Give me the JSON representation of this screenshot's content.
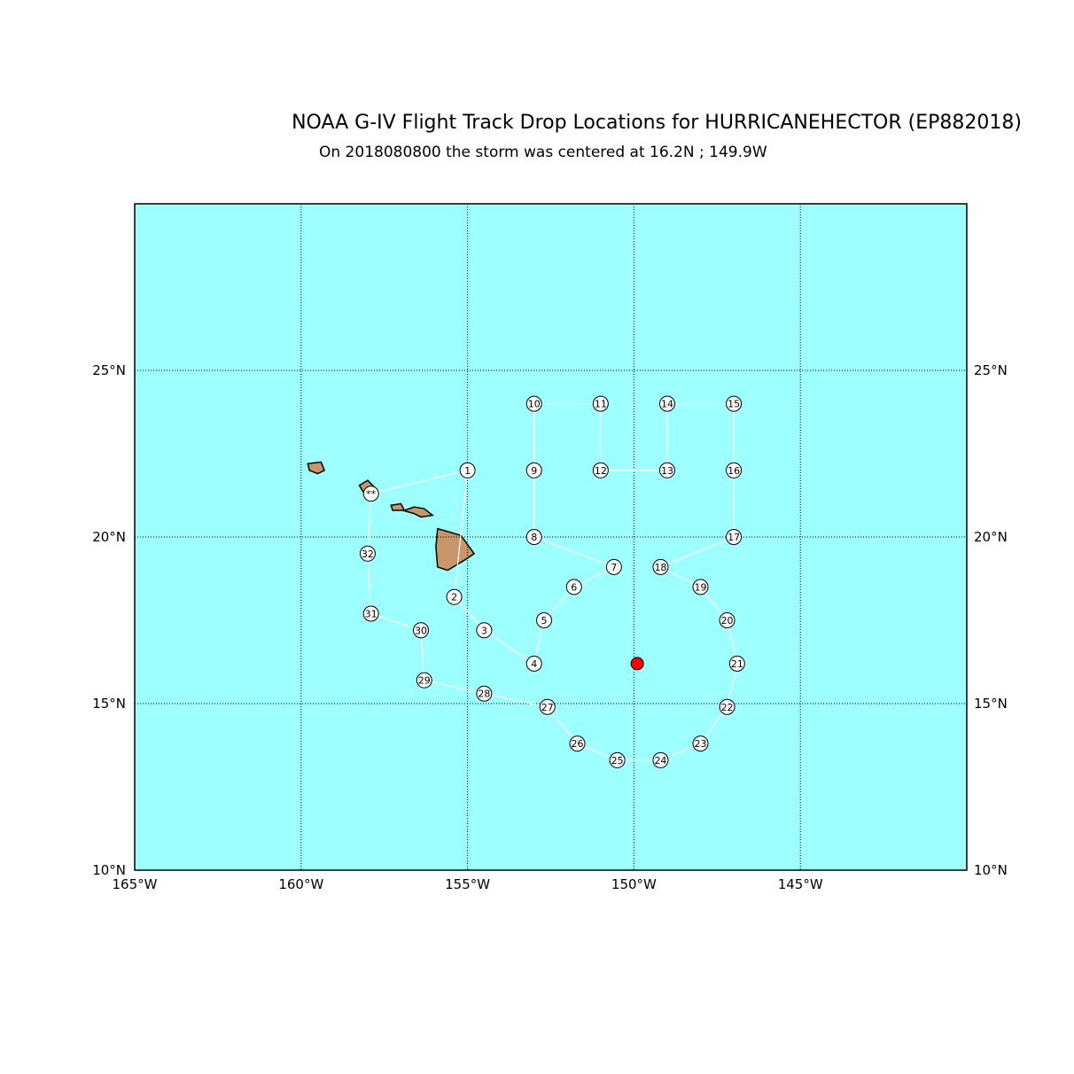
{
  "title": "NOAA G-IV Flight Track Drop Locations for HURRICANEHECTOR (EP882018)",
  "subtitle": "On 2018080800 the storm was centered at 16.2N ; 149.9W",
  "map": {
    "lon_range": [
      -165,
      -140
    ],
    "lat_range": [
      10,
      30
    ],
    "lon_ticks": [
      -165,
      -160,
      -155,
      -150,
      -145
    ],
    "lon_tick_labels": [
      "165°W",
      "160°W",
      "155°W",
      "150°W",
      "145°W"
    ],
    "lat_ticks": [
      10,
      15,
      20,
      25
    ],
    "lat_tick_labels": [
      "10°N",
      "15°N",
      "20°N",
      "25°N"
    ],
    "ocean_color": "#9effff",
    "land_color": "#c8966a",
    "track_color": "#ffffff",
    "storm_color": "#ff0000"
  },
  "storm_center": {
    "lat": 16.2,
    "lon": -149.9
  },
  "launch_marker": {
    "label": "**",
    "lat": 21.3,
    "lon": -157.9
  },
  "drops": [
    {
      "id": "1",
      "lat": 22.0,
      "lon": -155.0
    },
    {
      "id": "2",
      "lat": 18.2,
      "lon": -155.4
    },
    {
      "id": "3",
      "lat": 17.2,
      "lon": -154.5
    },
    {
      "id": "4",
      "lat": 16.2,
      "lon": -153.0
    },
    {
      "id": "5",
      "lat": 17.5,
      "lon": -152.7
    },
    {
      "id": "6",
      "lat": 18.5,
      "lon": -151.8
    },
    {
      "id": "7",
      "lat": 19.1,
      "lon": -150.6
    },
    {
      "id": "8",
      "lat": 20.0,
      "lon": -153.0
    },
    {
      "id": "9",
      "lat": 22.0,
      "lon": -153.0
    },
    {
      "id": "10",
      "lat": 24.0,
      "lon": -153.0
    },
    {
      "id": "11",
      "lat": 24.0,
      "lon": -151.0
    },
    {
      "id": "12",
      "lat": 22.0,
      "lon": -151.0
    },
    {
      "id": "13",
      "lat": 22.0,
      "lon": -149.0
    },
    {
      "id": "14",
      "lat": 24.0,
      "lon": -149.0
    },
    {
      "id": "15",
      "lat": 24.0,
      "lon": -147.0
    },
    {
      "id": "16",
      "lat": 22.0,
      "lon": -147.0
    },
    {
      "id": "17",
      "lat": 20.0,
      "lon": -147.0
    },
    {
      "id": "18",
      "lat": 19.1,
      "lon": -149.2
    },
    {
      "id": "19",
      "lat": 18.5,
      "lon": -148.0
    },
    {
      "id": "20",
      "lat": 17.5,
      "lon": -147.2
    },
    {
      "id": "21",
      "lat": 16.2,
      "lon": -146.9
    },
    {
      "id": "22",
      "lat": 14.9,
      "lon": -147.2
    },
    {
      "id": "23",
      "lat": 13.8,
      "lon": -148.0
    },
    {
      "id": "24",
      "lat": 13.3,
      "lon": -149.2
    },
    {
      "id": "25",
      "lat": 13.3,
      "lon": -150.5
    },
    {
      "id": "26",
      "lat": 13.8,
      "lon": -151.7
    },
    {
      "id": "27",
      "lat": 14.9,
      "lon": -152.6
    },
    {
      "id": "28",
      "lat": 15.3,
      "lon": -154.5
    },
    {
      "id": "29",
      "lat": 15.7,
      "lon": -156.3
    },
    {
      "id": "30",
      "lat": 17.2,
      "lon": -156.4
    },
    {
      "id": "31",
      "lat": 17.7,
      "lon": -157.9
    },
    {
      "id": "32",
      "lat": 19.5,
      "lon": -158.0
    }
  ],
  "islands": [
    {
      "name": "kauai",
      "coords": [
        [
          -159.8,
          22.2
        ],
        [
          -159.4,
          22.25
        ],
        [
          -159.3,
          22.0
        ],
        [
          -159.5,
          21.9
        ],
        [
          -159.75,
          22.0
        ]
      ]
    },
    {
      "name": "oahu",
      "coords": [
        [
          -158.25,
          21.55
        ],
        [
          -158.0,
          21.7
        ],
        [
          -157.75,
          21.45
        ],
        [
          -157.7,
          21.3
        ],
        [
          -158.1,
          21.3
        ]
      ]
    },
    {
      "name": "molokai-maui",
      "coords": [
        [
          -157.3,
          20.95
        ],
        [
          -157.0,
          21.0
        ],
        [
          -156.9,
          20.8
        ],
        [
          -156.6,
          20.9
        ],
        [
          -156.3,
          20.85
        ],
        [
          -156.05,
          20.65
        ],
        [
          -156.4,
          20.6
        ],
        [
          -156.6,
          20.7
        ],
        [
          -156.95,
          20.8
        ],
        [
          -157.25,
          20.8
        ]
      ]
    },
    {
      "name": "hawaii",
      "coords": [
        [
          -155.9,
          20.25
        ],
        [
          -155.2,
          20.05
        ],
        [
          -154.8,
          19.5
        ],
        [
          -155.1,
          19.3
        ],
        [
          -155.6,
          19.0
        ],
        [
          -155.9,
          19.1
        ],
        [
          -155.95,
          19.7
        ]
      ]
    }
  ]
}
